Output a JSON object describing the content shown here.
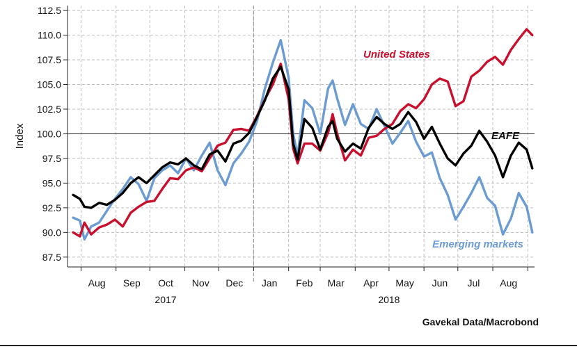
{
  "source_label": "Gavekal Data/Macrobond",
  "chart_data": {
    "type": "line",
    "ylabel": "Index",
    "ylim": [
      86.5,
      113.0
    ],
    "yticks": [
      87.5,
      90.0,
      92.5,
      95.0,
      97.5,
      100.0,
      102.5,
      105.0,
      107.5,
      110.0,
      112.5
    ],
    "ytick_labels": [
      "87.5",
      "90.0",
      "92.5",
      "95.0",
      "97.5",
      "100.0",
      "102.5",
      "105.0",
      "107.5",
      "110.0",
      "112.5"
    ],
    "xlim": [
      "2017-07-20",
      "2018-09-07"
    ],
    "month_labels": [
      "Aug",
      "Sep",
      "Oct",
      "Nov",
      "Dec",
      "Jan",
      "Feb",
      "Mar",
      "Apr",
      "May",
      "Jun",
      "Jul",
      "Aug"
    ],
    "month_label_dates": [
      "2017-08-15",
      "2017-09-15",
      "2017-10-15",
      "2017-11-15",
      "2017-12-15",
      "2018-01-15",
      "2018-02-15",
      "2018-03-15",
      "2018-04-15",
      "2018-05-15",
      "2018-06-15",
      "2018-07-15",
      "2018-08-15"
    ],
    "year_labels": [
      {
        "label": "2017",
        "date": "2017-10-15"
      },
      {
        "label": "2018",
        "date": "2018-05-01"
      }
    ],
    "reference_line": 100.0,
    "vertical_divider": "2018-01-01",
    "grid": "dashed",
    "series": [
      {
        "name": "United States",
        "color": "#c8102e",
        "values": [
          [
            "2017-07-25",
            90.0
          ],
          [
            "2017-07-31",
            89.6
          ],
          [
            "2017-08-04",
            91.0
          ],
          [
            "2017-08-10",
            89.8
          ],
          [
            "2017-08-17",
            90.5
          ],
          [
            "2017-08-24",
            90.8
          ],
          [
            "2017-08-31",
            91.3
          ],
          [
            "2017-09-07",
            90.6
          ],
          [
            "2017-09-14",
            92.0
          ],
          [
            "2017-09-21",
            92.6
          ],
          [
            "2017-09-28",
            93.1
          ],
          [
            "2017-10-05",
            93.2
          ],
          [
            "2017-10-12",
            94.4
          ],
          [
            "2017-10-19",
            95.5
          ],
          [
            "2017-10-26",
            95.4
          ],
          [
            "2017-11-02",
            96.3
          ],
          [
            "2017-11-09",
            96.6
          ],
          [
            "2017-11-16",
            96.2
          ],
          [
            "2017-11-23",
            97.5
          ],
          [
            "2017-11-30",
            98.8
          ],
          [
            "2017-12-07",
            99.1
          ],
          [
            "2017-12-14",
            100.4
          ],
          [
            "2017-12-21",
            100.5
          ],
          [
            "2017-12-28",
            100.3
          ],
          [
            "2018-01-04",
            101.8
          ],
          [
            "2018-01-11",
            103.5
          ],
          [
            "2018-01-18",
            105.0
          ],
          [
            "2018-01-25",
            107.1
          ],
          [
            "2018-02-01",
            103.5
          ],
          [
            "2018-02-05",
            98.5
          ],
          [
            "2018-02-09",
            97.0
          ],
          [
            "2018-02-15",
            99.0
          ],
          [
            "2018-02-22",
            99.0
          ],
          [
            "2018-03-01",
            98.3
          ],
          [
            "2018-03-08",
            100.1
          ],
          [
            "2018-03-12",
            102.0
          ],
          [
            "2018-03-16",
            100.0
          ],
          [
            "2018-03-23",
            97.3
          ],
          [
            "2018-03-30",
            98.4
          ],
          [
            "2018-04-06",
            97.8
          ],
          [
            "2018-04-13",
            99.6
          ],
          [
            "2018-04-20",
            99.8
          ],
          [
            "2018-04-27",
            100.5
          ],
          [
            "2018-05-04",
            101.0
          ],
          [
            "2018-05-11",
            102.3
          ],
          [
            "2018-05-18",
            103.0
          ],
          [
            "2018-05-25",
            102.6
          ],
          [
            "2018-06-01",
            103.5
          ],
          [
            "2018-06-08",
            105.0
          ],
          [
            "2018-06-15",
            105.6
          ],
          [
            "2018-06-22",
            105.3
          ],
          [
            "2018-06-29",
            102.8
          ],
          [
            "2018-07-06",
            103.3
          ],
          [
            "2018-07-13",
            105.8
          ],
          [
            "2018-07-20",
            106.4
          ],
          [
            "2018-07-27",
            107.3
          ],
          [
            "2018-08-03",
            107.8
          ],
          [
            "2018-08-10",
            107.0
          ],
          [
            "2018-08-17",
            108.5
          ],
          [
            "2018-08-24",
            109.6
          ],
          [
            "2018-08-31",
            110.6
          ],
          [
            "2018-09-05",
            110.0
          ]
        ]
      },
      {
        "name": "EAFE",
        "color": "#000000",
        "values": [
          [
            "2017-07-25",
            93.8
          ],
          [
            "2017-07-31",
            93.4
          ],
          [
            "2017-08-04",
            92.6
          ],
          [
            "2017-08-10",
            92.5
          ],
          [
            "2017-08-17",
            93.0
          ],
          [
            "2017-08-24",
            92.8
          ],
          [
            "2017-08-31",
            93.3
          ],
          [
            "2017-09-07",
            94.0
          ],
          [
            "2017-09-14",
            95.0
          ],
          [
            "2017-09-21",
            95.6
          ],
          [
            "2017-09-28",
            95.0
          ],
          [
            "2017-10-05",
            95.8
          ],
          [
            "2017-10-12",
            96.6
          ],
          [
            "2017-10-19",
            97.1
          ],
          [
            "2017-10-26",
            96.9
          ],
          [
            "2017-11-02",
            97.5
          ],
          [
            "2017-11-09",
            96.8
          ],
          [
            "2017-11-16",
            96.4
          ],
          [
            "2017-11-23",
            97.9
          ],
          [
            "2017-11-30",
            98.3
          ],
          [
            "2017-12-07",
            97.2
          ],
          [
            "2017-12-14",
            99.0
          ],
          [
            "2017-12-21",
            99.3
          ],
          [
            "2017-12-28",
            100.1
          ],
          [
            "2018-01-04",
            101.7
          ],
          [
            "2018-01-11",
            103.4
          ],
          [
            "2018-01-18",
            105.6
          ],
          [
            "2018-01-25",
            106.8
          ],
          [
            "2018-02-01",
            104.5
          ],
          [
            "2018-02-05",
            99.0
          ],
          [
            "2018-02-09",
            97.4
          ],
          [
            "2018-02-15",
            101.5
          ],
          [
            "2018-02-22",
            100.6
          ],
          [
            "2018-03-01",
            98.4
          ],
          [
            "2018-03-08",
            100.7
          ],
          [
            "2018-03-12",
            101.3
          ],
          [
            "2018-03-16",
            99.5
          ],
          [
            "2018-03-23",
            98.2
          ],
          [
            "2018-03-30",
            99.0
          ],
          [
            "2018-04-06",
            98.5
          ],
          [
            "2018-04-13",
            100.6
          ],
          [
            "2018-04-20",
            101.7
          ],
          [
            "2018-04-27",
            101.0
          ],
          [
            "2018-05-04",
            100.5
          ],
          [
            "2018-05-11",
            101.0
          ],
          [
            "2018-05-18",
            102.2
          ],
          [
            "2018-05-25",
            101.2
          ],
          [
            "2018-06-01",
            99.5
          ],
          [
            "2018-06-08",
            100.7
          ],
          [
            "2018-06-15",
            99.0
          ],
          [
            "2018-06-22",
            97.5
          ],
          [
            "2018-06-29",
            96.8
          ],
          [
            "2018-07-06",
            98.0
          ],
          [
            "2018-07-13",
            98.8
          ],
          [
            "2018-07-20",
            100.3
          ],
          [
            "2018-07-27",
            99.2
          ],
          [
            "2018-08-03",
            97.8
          ],
          [
            "2018-08-10",
            95.6
          ],
          [
            "2018-08-17",
            97.8
          ],
          [
            "2018-08-24",
            99.1
          ],
          [
            "2018-08-31",
            98.4
          ],
          [
            "2018-09-05",
            96.5
          ]
        ]
      },
      {
        "name": "Emerging markets",
        "color": "#6b9bd1",
        "values": [
          [
            "2017-07-25",
            91.5
          ],
          [
            "2017-07-31",
            91.2
          ],
          [
            "2017-08-04",
            89.3
          ],
          [
            "2017-08-10",
            90.6
          ],
          [
            "2017-08-17",
            91.0
          ],
          [
            "2017-08-24",
            92.2
          ],
          [
            "2017-08-31",
            93.4
          ],
          [
            "2017-09-07",
            94.4
          ],
          [
            "2017-09-14",
            95.6
          ],
          [
            "2017-09-21",
            94.9
          ],
          [
            "2017-09-28",
            93.2
          ],
          [
            "2017-10-05",
            95.5
          ],
          [
            "2017-10-12",
            96.3
          ],
          [
            "2017-10-19",
            96.8
          ],
          [
            "2017-10-26",
            96.0
          ],
          [
            "2017-11-02",
            97.5
          ],
          [
            "2017-11-09",
            96.3
          ],
          [
            "2017-11-16",
            97.8
          ],
          [
            "2017-11-23",
            99.1
          ],
          [
            "2017-11-30",
            96.3
          ],
          [
            "2017-12-07",
            94.8
          ],
          [
            "2017-12-14",
            97.0
          ],
          [
            "2017-12-21",
            98.0
          ],
          [
            "2017-12-28",
            99.2
          ],
          [
            "2018-01-04",
            101.3
          ],
          [
            "2018-01-11",
            104.6
          ],
          [
            "2018-01-18",
            107.2
          ],
          [
            "2018-01-25",
            109.5
          ],
          [
            "2018-02-01",
            105.7
          ],
          [
            "2018-02-05",
            100.0
          ],
          [
            "2018-02-09",
            97.8
          ],
          [
            "2018-02-15",
            103.4
          ],
          [
            "2018-02-22",
            102.6
          ],
          [
            "2018-03-01",
            100.0
          ],
          [
            "2018-03-08",
            104.6
          ],
          [
            "2018-03-12",
            105.4
          ],
          [
            "2018-03-16",
            103.6
          ],
          [
            "2018-03-23",
            100.9
          ],
          [
            "2018-03-30",
            103.0
          ],
          [
            "2018-04-06",
            101.0
          ],
          [
            "2018-04-13",
            100.5
          ],
          [
            "2018-04-20",
            102.5
          ],
          [
            "2018-04-27",
            100.8
          ],
          [
            "2018-05-04",
            99.0
          ],
          [
            "2018-05-11",
            100.1
          ],
          [
            "2018-05-18",
            101.3
          ],
          [
            "2018-05-25",
            99.2
          ],
          [
            "2018-06-01",
            97.7
          ],
          [
            "2018-06-08",
            98.1
          ],
          [
            "2018-06-15",
            95.5
          ],
          [
            "2018-06-22",
            93.8
          ],
          [
            "2018-06-29",
            91.3
          ],
          [
            "2018-07-06",
            92.6
          ],
          [
            "2018-07-13",
            94.0
          ],
          [
            "2018-07-20",
            95.6
          ],
          [
            "2018-07-27",
            93.5
          ],
          [
            "2018-08-03",
            92.7
          ],
          [
            "2018-08-10",
            89.8
          ],
          [
            "2018-08-17",
            91.4
          ],
          [
            "2018-08-24",
            94.0
          ],
          [
            "2018-08-31",
            92.6
          ],
          [
            "2018-09-05",
            90.0
          ]
        ]
      }
    ]
  }
}
